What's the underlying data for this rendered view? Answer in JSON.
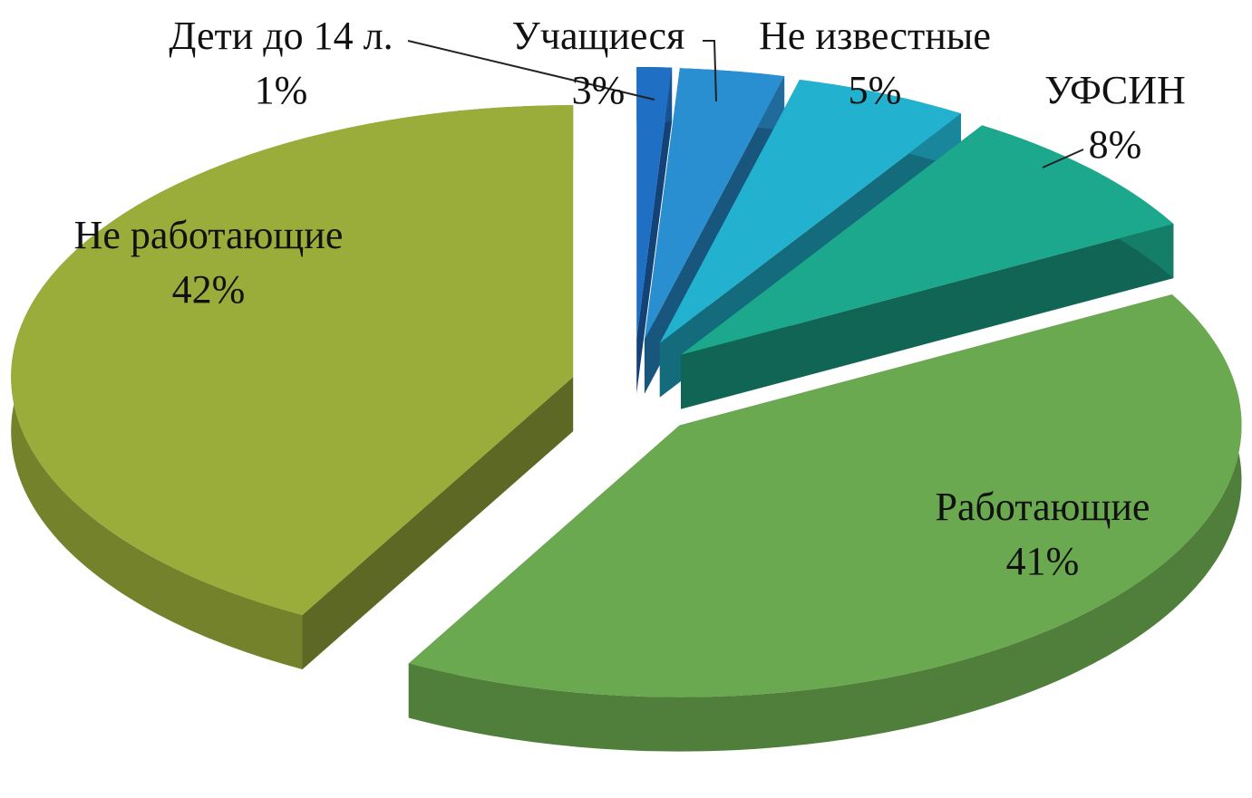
{
  "chart_data": {
    "type": "pie3d",
    "categories": [
      "Дети до 14 л.",
      "Учащиеся",
      "Не известные",
      "УФСИН",
      "Работающие",
      "Не работающие"
    ],
    "values": [
      1,
      3,
      5,
      8,
      41,
      42
    ],
    "value_labels": [
      "1%",
      "3%",
      "5%",
      "8%",
      "41%",
      "42%"
    ],
    "colors": [
      "#1f6fc4",
      "#2a8fd0",
      "#22b2cf",
      "#1ca88c",
      "#6aa94f",
      "#9aad3a"
    ]
  }
}
